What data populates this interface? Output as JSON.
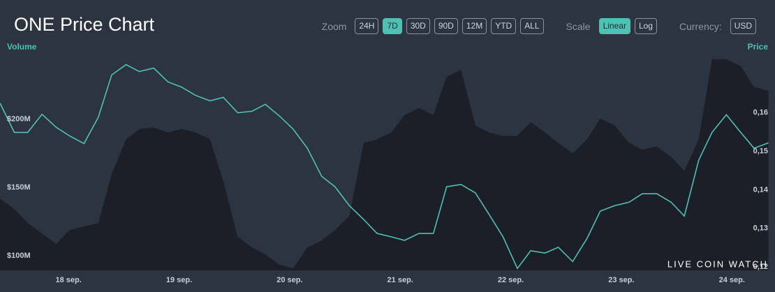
{
  "header": {
    "title": "ONE Price Chart",
    "groups": [
      {
        "label": "Zoom",
        "buttons": [
          {
            "text": "24H",
            "active": false
          },
          {
            "text": "7D",
            "active": true
          },
          {
            "text": "30D",
            "active": false
          },
          {
            "text": "90D",
            "active": false
          },
          {
            "text": "12M",
            "active": false
          },
          {
            "text": "YTD",
            "active": false
          },
          {
            "text": "ALL",
            "active": false
          }
        ]
      },
      {
        "label": "Scale",
        "buttons": [
          {
            "text": "Linear",
            "active": true
          },
          {
            "text": "Log",
            "active": false
          }
        ]
      },
      {
        "label": "Currency:",
        "buttons": [
          {
            "text": "USD",
            "active": false
          }
        ]
      }
    ]
  },
  "watermark": "LIVE COIN WATCH",
  "chart_data": {
    "type": "line",
    "x": [
      -0.62,
      -0.49,
      -0.37,
      -0.24,
      -0.11,
      0.01,
      0.14,
      0.27,
      0.39,
      0.52,
      0.64,
      0.77,
      0.9,
      1.02,
      1.15,
      1.28,
      1.4,
      1.53,
      1.66,
      1.78,
      1.91,
      2.03,
      2.16,
      2.29,
      2.41,
      2.54,
      2.67,
      2.79,
      2.92,
      3.04,
      3.17,
      3.3,
      3.42,
      3.55,
      3.68,
      3.8,
      3.93,
      4.06,
      4.18,
      4.31,
      4.43,
      4.56,
      4.69,
      4.81,
      4.94,
      5.07,
      5.19,
      5.32,
      5.45,
      5.57,
      5.7,
      5.82,
      5.95,
      6.08,
      6.2,
      6.33
    ],
    "xlim": [
      -0.62,
      6.39
    ],
    "xticks": [
      {
        "value": 0,
        "label": "18 sep."
      },
      {
        "value": 1,
        "label": "19 sep."
      },
      {
        "value": 2,
        "label": "20 sep."
      },
      {
        "value": 3,
        "label": "21 sep."
      },
      {
        "value": 4,
        "label": "22 sep."
      },
      {
        "value": 5,
        "label": "23 sep."
      },
      {
        "value": 6,
        "label": "24 sep."
      }
    ],
    "ylim": [
      89300000,
      249000000
    ],
    "yticks": [
      {
        "value": 100000000,
        "label": "$100M"
      },
      {
        "value": 150000000,
        "label": "$150M"
      },
      {
        "value": 200000000,
        "label": "$200M"
      }
    ],
    "y2lim": [
      0.1191,
      0.1757
    ],
    "y2ticks": [
      {
        "value": 0.12,
        "label": "0,12"
      },
      {
        "value": 0.13,
        "label": "0,13"
      },
      {
        "value": 0.14,
        "label": "0,14"
      },
      {
        "value": 0.15,
        "label": "0,15"
      },
      {
        "value": 0.16,
        "label": "0,16"
      }
    ],
    "series": [
      {
        "name": "Volume",
        "type": "area",
        "color": "#1c1f28",
        "label_color": "#4fc1b4",
        "values": [
          141800000,
          134200000,
          124000000,
          116300000,
          108700000,
          118900000,
          121400000,
          124000000,
          159700000,
          185200000,
          192900000,
          193900000,
          190300000,
          192900000,
          190300000,
          185200000,
          154600000,
          113800000,
          106100000,
          101000000,
          93400000,
          90800000,
          106100000,
          111200000,
          118900000,
          129100000,
          182700000,
          185200000,
          190300000,
          203100000,
          208200000,
          203100000,
          231100000,
          236200000,
          195400000,
          190300000,
          187800000,
          187800000,
          198000000,
          190300000,
          182700000,
          175000000,
          185200000,
          200500000,
          195400000,
          182700000,
          177600000,
          180100000,
          172400000,
          162200000,
          185200000,
          243900000,
          243900000,
          238800000,
          223500000,
          220900000
        ]
      },
      {
        "name": "Price",
        "type": "line",
        "axis": "y2",
        "color": "#4fc1b4",
        "label_color": "#4fc1b4",
        "values": [
          0.1625,
          0.1549,
          0.1549,
          0.1596,
          0.1562,
          0.154,
          0.152,
          0.1589,
          0.1698,
          0.1725,
          0.1707,
          0.1716,
          0.168,
          0.1667,
          0.1645,
          0.1631,
          0.164,
          0.16,
          0.1604,
          0.1622,
          0.1591,
          0.1558,
          0.1508,
          0.1435,
          0.1408,
          0.1359,
          0.1323,
          0.1287,
          0.1278,
          0.1269,
          0.1287,
          0.1287,
          0.1408,
          0.1414,
          0.1392,
          0.1338,
          0.1278,
          0.1196,
          0.1242,
          0.1236,
          0.1251,
          0.1214,
          0.1274,
          0.1345,
          0.1359,
          0.1368,
          0.139,
          0.139,
          0.1368,
          0.1332,
          0.1477,
          0.1549,
          0.1595,
          0.1549,
          0.1508,
          0.1522
        ]
      }
    ]
  }
}
